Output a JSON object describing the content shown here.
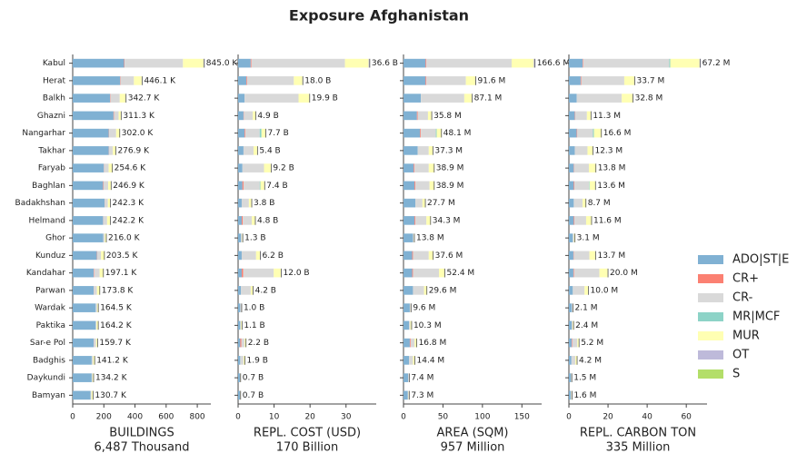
{
  "title": "Exposure Afghanistan",
  "legend": {
    "position": "right",
    "series": [
      {
        "name": "ADO|ST|E",
        "color": "#80b1d3"
      },
      {
        "name": "CR+",
        "color": "#fb8072"
      },
      {
        "name": "CR-",
        "color": "#d9d9d9"
      },
      {
        "name": "MR|MCF",
        "color": "#8dd3c7"
      },
      {
        "name": "MUR",
        "color": "#ffffb3"
      },
      {
        "name": "OT",
        "color": "#bebada"
      },
      {
        "name": "S",
        "color": "#b3de69"
      }
    ]
  },
  "chart_data": [
    {
      "type": "bar",
      "orientation": "horizontal",
      "xlabel": "BUILDINGS",
      "xlabel_sub": "6,487 Thousand",
      "categories": [
        "Kabul",
        "Herat",
        "Balkh",
        "Ghazni",
        "Nangarhar",
        "Takhar",
        "Faryab",
        "Baghlan",
        "Badakhshan",
        "Helmand",
        "Ghor",
        "Kunduz",
        "Kandahar",
        "Parwan",
        "Wardak",
        "Paktika",
        "Sar-e Pol",
        "Badghis",
        "Daykundi",
        "Bamyan"
      ],
      "xlim": [
        0,
        887
      ],
      "xticks": [
        0,
        200,
        400,
        600,
        800
      ],
      "series": [
        {
          "values": [
            330,
            305,
            240,
            262,
            232,
            232,
            200,
            195,
            205,
            195,
            196,
            155,
            135,
            135,
            148,
            148,
            135,
            122,
            122,
            115
          ]
        },
        {
          "values": [
            3,
            3,
            2,
            3,
            2,
            1,
            1,
            3,
            1,
            1,
            0,
            2,
            3,
            1,
            0,
            0,
            1,
            0,
            0,
            0
          ]
        },
        {
          "values": [
            375,
            85,
            60,
            30,
            45,
            25,
            30,
            30,
            20,
            25,
            10,
            25,
            35,
            20,
            9,
            5,
            14,
            9,
            5,
            6
          ]
        },
        {
          "values": [
            0,
            0,
            0,
            0,
            0,
            0,
            0,
            0,
            0,
            0,
            0,
            0,
            0,
            0,
            0,
            0,
            0,
            0,
            0,
            0
          ]
        },
        {
          "values": [
            132,
            50,
            38,
            15,
            22,
            18,
            23,
            18,
            15,
            20,
            9.5,
            21,
            23,
            17,
            7,
            10.7,
            9,
            10,
            7,
            9.5
          ]
        },
        {
          "values": [
            5,
            3,
            2.7,
            1.3,
            1,
            0.9,
            0.6,
            0.9,
            1.3,
            1.2,
            0.5,
            0.5,
            1.1,
            0.8,
            0.5,
            0.5,
            0.7,
            0.2,
            0.2,
            0.2
          ]
        },
        {
          "values": [
            0,
            0,
            0,
            0,
            0,
            0,
            0,
            0,
            0,
            0,
            0,
            0,
            0,
            0,
            0,
            0,
            0,
            0,
            0,
            0
          ]
        }
      ],
      "totals": [
        845.0,
        446.1,
        342.7,
        311.3,
        302.0,
        276.9,
        254.6,
        246.9,
        242.3,
        242.2,
        216.0,
        203.5,
        197.1,
        173.8,
        164.5,
        164.2,
        159.7,
        141.2,
        134.2,
        130.7
      ],
      "total_labels": [
        "845.0 K",
        "446.1 K",
        "342.7 K",
        "311.3 K",
        "302.0 K",
        "276.9 K",
        "254.6 K",
        "246.9 K",
        "242.3 K",
        "242.2 K",
        "216.0 K",
        "203.5 K",
        "197.1 K",
        "173.8 K",
        "164.5 K",
        "164.2 K",
        "159.7 K",
        "141.2 K",
        "134.2 K",
        "130.7 K"
      ]
    },
    {
      "type": "bar",
      "orientation": "horizontal",
      "xlabel": "REPL. COST (USD)",
      "xlabel_sub": "170 Billion",
      "xlim": [
        0,
        38.4
      ],
      "xticks": [
        0,
        10,
        20,
        30
      ],
      "series": [
        {
          "values": [
            3.5,
            2.3,
            1.8,
            1.5,
            1.8,
            1.5,
            1.2,
            1.2,
            1,
            1,
            0.8,
            1,
            1,
            0.8,
            0.6,
            0.6,
            0.6,
            0.6,
            0.5,
            0.5
          ]
        },
        {
          "values": [
            0.2,
            0.2,
            0,
            0.1,
            0.2,
            0,
            0,
            0.3,
            0,
            0.3,
            0,
            0,
            0.4,
            0,
            0,
            0,
            0.3,
            0,
            0,
            0
          ]
        },
        {
          "values": [
            26,
            13,
            15,
            2.5,
            4,
            2.8,
            6,
            4.5,
            2,
            2.5,
            0.3,
            4,
            8.5,
            2.7,
            0.3,
            0.2,
            0.9,
            0.9,
            0.1,
            0.1
          ]
        },
        {
          "values": [
            0,
            0,
            0,
            0,
            0.5,
            0,
            0,
            0.2,
            0,
            0,
            0,
            0,
            0,
            0,
            0,
            0,
            0,
            0,
            0,
            0
          ]
        },
        {
          "values": [
            6.6,
            2.4,
            3,
            0.7,
            1.1,
            1,
            1.9,
            1.1,
            0.7,
            0.9,
            0.2,
            1.1,
            2,
            0.6,
            0.1,
            0.3,
            0.4,
            0.4,
            0.1,
            0.1
          ]
        },
        {
          "values": [
            0.3,
            0.1,
            0.1,
            0.1,
            0.1,
            0.1,
            0.1,
            0.1,
            0.1,
            0.1,
            0,
            0.1,
            0.1,
            0.1,
            0,
            0,
            0,
            0,
            0,
            0
          ]
        },
        {
          "values": [
            0,
            0,
            0,
            0,
            0,
            0,
            0,
            0,
            0,
            0,
            0,
            0,
            0,
            0,
            0,
            0,
            0,
            0,
            0,
            0
          ]
        }
      ],
      "totals": [
        36.6,
        18.0,
        19.9,
        4.9,
        7.7,
        5.4,
        9.2,
        7.4,
        3.8,
        4.8,
        1.3,
        6.2,
        12.0,
        4.2,
        1.0,
        1.1,
        2.2,
        1.9,
        0.7,
        0.7
      ],
      "total_labels": [
        "36.6 B",
        "18.0 B",
        "19.9 B",
        "4.9 B",
        "7.7 B",
        "5.4 B",
        "9.2 B",
        "7.4 B",
        "3.8 B",
        "4.8 B",
        "1.3 B",
        "6.2 B",
        "12.0 B",
        "4.2 B",
        "1.0 B",
        "1.1 B",
        "2.2 B",
        "1.9 B",
        "0.7 B",
        "0.7 B"
      ]
    },
    {
      "type": "bar",
      "orientation": "horizontal",
      "xlabel": "AREA (SQM)",
      "xlabel_sub": "957 Million",
      "xlim": [
        0,
        175
      ],
      "xticks": [
        0,
        50,
        100,
        150
      ],
      "series": [
        {
          "values": [
            28,
            28,
            22,
            17,
            21,
            18,
            13,
            14,
            15,
            14,
            12,
            11,
            11,
            12,
            8,
            7,
            8,
            7,
            6,
            5.5
          ]
        },
        {
          "values": [
            1,
            1,
            0,
            1,
            1,
            0,
            1,
            1,
            0,
            1,
            0,
            1,
            1,
            0,
            0,
            0,
            1,
            0,
            0,
            0
          ]
        },
        {
          "values": [
            108,
            50,
            55,
            13,
            19,
            14,
            18,
            18,
            9,
            14,
            1,
            20,
            33,
            14,
            1,
            1.5,
            5,
            5,
            1,
            1
          ]
        },
        {
          "values": [
            0,
            0,
            0,
            0,
            1,
            0,
            0,
            0,
            0,
            0,
            0,
            0,
            0,
            0,
            0,
            0,
            0,
            0,
            0,
            0
          ]
        },
        {
          "values": [
            28,
            12,
            9.6,
            4.5,
            5.8,
            5,
            6.6,
            5.6,
            3.5,
            5,
            0.7,
            5.4,
            7,
            3.4,
            0.5,
            1.7,
            2.7,
            2.3,
            0.4,
            0.8
          ]
        },
        {
          "values": [
            1.6,
            0.6,
            0.5,
            0.3,
            0.3,
            0.3,
            0.3,
            0.3,
            0.2,
            0.3,
            0.1,
            0.2,
            0.4,
            0.2,
            0.1,
            0.1,
            0.1,
            0.1,
            0,
            0
          ]
        },
        {
          "values": [
            0,
            0,
            0,
            0,
            0,
            0,
            0,
            0,
            0,
            0,
            0,
            0,
            0,
            0,
            0,
            0,
            0,
            0,
            0,
            0
          ]
        }
      ],
      "totals": [
        166.6,
        91.6,
        87.1,
        35.8,
        48.1,
        37.3,
        38.9,
        38.9,
        27.7,
        34.3,
        13.8,
        37.6,
        52.4,
        29.6,
        9.6,
        10.3,
        16.8,
        14.4,
        7.4,
        7.3
      ],
      "total_labels": [
        "166.6 M",
        "91.6 M",
        "87.1 M",
        "35.8 M",
        "48.1 M",
        "37.3 M",
        "38.9 M",
        "38.9 M",
        "27.7 M",
        "34.3 M",
        "13.8 M",
        "37.6 M",
        "52.4 M",
        "29.6 M",
        "9.6 M",
        "10.3 M",
        "16.8 M",
        "14.4 M",
        "7.4 M",
        "7.3 M"
      ]
    },
    {
      "type": "bar",
      "orientation": "horizontal",
      "xlabel": "REPL. CARBON TON",
      "xlabel_sub": "335 Million",
      "xlim": [
        0,
        70.6
      ],
      "xticks": [
        0,
        20,
        40,
        60
      ],
      "series": [
        {
          "values": [
            7,
            6,
            4,
            3,
            4,
            3,
            2.5,
            2.5,
            2.5,
            2.5,
            2,
            2.3,
            2.3,
            2,
            1.5,
            1.4,
            1.5,
            1.3,
            1.1,
            1
          ]
        },
        {
          "values": [
            0.3,
            0.3,
            0,
            0.2,
            0.3,
            0,
            0.2,
            0.3,
            0,
            0.3,
            0,
            0.2,
            0.3,
            0,
            0,
            0,
            0.3,
            0,
            0,
            0
          ]
        },
        {
          "values": [
            44,
            22,
            23,
            6,
            8,
            6.5,
            7.5,
            7.5,
            4.5,
            6,
            0.6,
            8,
            13,
            6,
            0.4,
            0.5,
            2.5,
            2,
            0.2,
            0.3
          ]
        },
        {
          "values": [
            0.5,
            0,
            0,
            0,
            0.5,
            0,
            0,
            0.3,
            0,
            0,
            0,
            0,
            0,
            0,
            0,
            0,
            0,
            0,
            0,
            0
          ]
        },
        {
          "values": [
            15,
            5.2,
            5.6,
            2,
            3.7,
            2.7,
            3.5,
            2.9,
            1.6,
            2.7,
            0.5,
            3.1,
            4.3,
            1.9,
            0.2,
            0.5,
            0.9,
            0.9,
            0.2,
            0.3
          ]
        },
        {
          "values": [
            0.4,
            0.2,
            0.2,
            0.1,
            0.1,
            0.1,
            0.1,
            0.1,
            0.1,
            0.1,
            0,
            0.1,
            0.1,
            0.1,
            0,
            0,
            0,
            0,
            0,
            0
          ]
        },
        {
          "values": [
            0,
            0,
            0,
            0,
            0,
            0,
            0,
            0,
            0,
            0,
            0,
            0,
            0,
            0,
            0,
            0,
            0,
            0,
            0,
            0
          ]
        }
      ],
      "totals": [
        67.2,
        33.7,
        32.8,
        11.3,
        16.6,
        12.3,
        13.8,
        13.6,
        8.7,
        11.6,
        3.1,
        13.7,
        20.0,
        10.0,
        2.1,
        2.4,
        5.2,
        4.2,
        1.5,
        1.6
      ],
      "total_labels": [
        "67.2 M",
        "33.7 M",
        "32.8 M",
        "11.3 M",
        "16.6 M",
        "12.3 M",
        "13.8 M",
        "13.6 M",
        "8.7 M",
        "11.6 M",
        "3.1 M",
        "13.7 M",
        "20.0 M",
        "10.0 M",
        "2.1 M",
        "2.4 M",
        "5.2 M",
        "4.2 M",
        "1.5 M",
        "1.6 M"
      ]
    }
  ]
}
